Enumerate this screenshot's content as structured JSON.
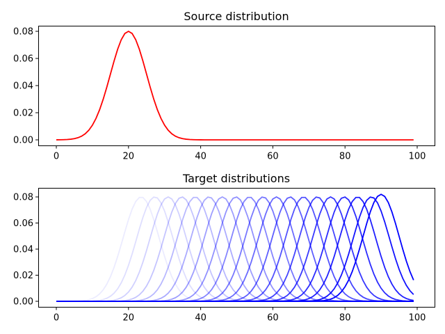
{
  "chart_data": [
    {
      "type": "line",
      "title": "Source distribution",
      "xlabel": "",
      "ylabel": "",
      "xlim": [
        -5,
        104
      ],
      "ylim": [
        -0.004,
        0.084
      ],
      "xticks": [
        0,
        20,
        40,
        60,
        80,
        100
      ],
      "yticks": [
        "0.00",
        "0.02",
        "0.04",
        "0.06",
        "0.08"
      ],
      "grid": false,
      "series": [
        {
          "name": "source",
          "color": "#ff0000",
          "distribution": "gaussian",
          "mean": 20,
          "std": 5,
          "x_range": [
            0,
            99
          ],
          "peak": 0.08
        }
      ]
    },
    {
      "type": "line",
      "title": "Target distributions",
      "xlabel": "",
      "ylabel": "",
      "xlim": [
        -5,
        104
      ],
      "ylim": [
        -0.004,
        0.086
      ],
      "xticks": [
        0,
        20,
        40,
        60,
        80,
        100
      ],
      "yticks": [
        "0.00",
        "0.02",
        "0.04",
        "0.06",
        "0.08"
      ],
      "grid": false,
      "color": "#0000ff",
      "note": "Gaussian curves (std 5) with increasing opacity as mean shifts right",
      "means": [
        23.5,
        27.3,
        31.0,
        34.8,
        38.5,
        42.3,
        46.0,
        49.8,
        53.5,
        57.3,
        61.0,
        64.8,
        68.5,
        72.3,
        76.0,
        79.8,
        83.5,
        87.3,
        90.0
      ],
      "alphas": [
        0.08,
        0.13,
        0.18,
        0.23,
        0.28,
        0.33,
        0.38,
        0.43,
        0.48,
        0.53,
        0.58,
        0.63,
        0.68,
        0.73,
        0.78,
        0.83,
        0.88,
        0.93,
        1.0
      ],
      "peaks": [
        0.08,
        0.08,
        0.08,
        0.08,
        0.08,
        0.08,
        0.08,
        0.08,
        0.08,
        0.08,
        0.08,
        0.08,
        0.08,
        0.08,
        0.08,
        0.08,
        0.08,
        0.08,
        0.082
      ],
      "x_range": [
        0,
        99
      ]
    }
  ],
  "titles": {
    "top": "Source distribution",
    "bottom": "Target distributions"
  },
  "ticks": {
    "x": [
      "0",
      "20",
      "40",
      "60",
      "80",
      "100"
    ],
    "y": [
      "0.00",
      "0.02",
      "0.04",
      "0.06",
      "0.08"
    ]
  }
}
